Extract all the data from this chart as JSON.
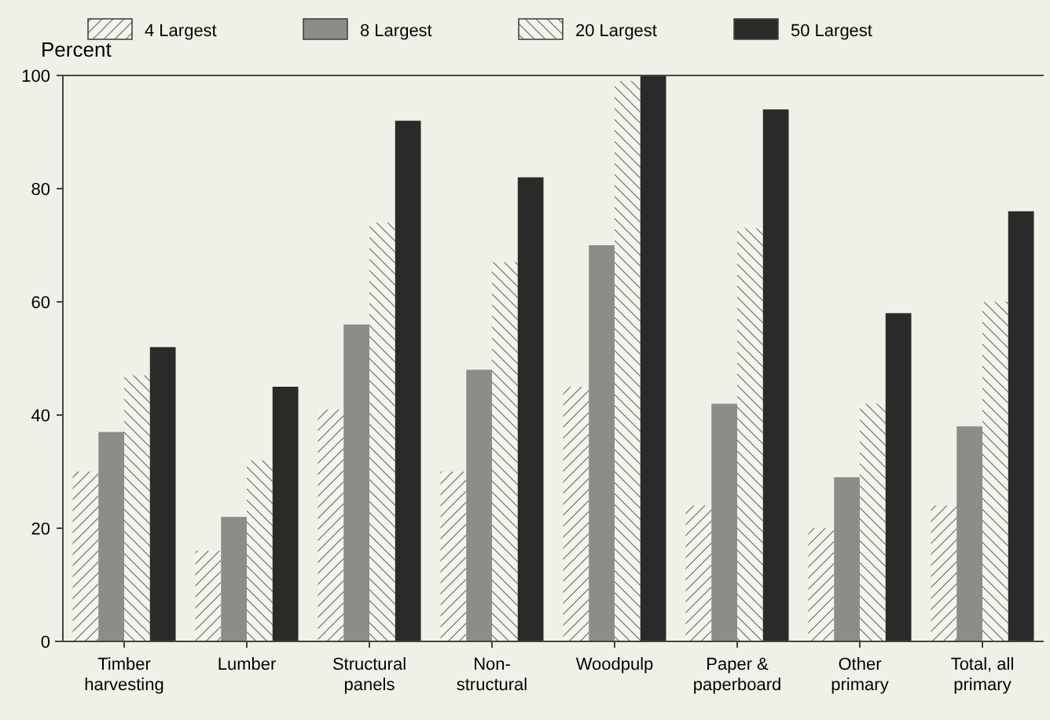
{
  "chart_data": {
    "type": "bar",
    "ylabel": "Percent",
    "categories": [
      "Timber harvesting",
      "Lumber",
      "Structural panels",
      "Non-structural",
      "Woodpulp",
      "Paper & paperboard",
      "Other primary",
      "Total, all primary"
    ],
    "series": [
      {
        "name": "4 Largest",
        "color": "#f4f3ec",
        "values": [
          30,
          16,
          41,
          30,
          45,
          24,
          20,
          24
        ]
      },
      {
        "name": "8 Largest",
        "color": "#8c8c88",
        "values": [
          37,
          22,
          56,
          48,
          70,
          42,
          29,
          38
        ]
      },
      {
        "name": "20 Largest",
        "color": "#f4f3ec",
        "values": [
          47,
          32,
          74,
          67,
          99,
          73,
          42,
          60
        ]
      },
      {
        "name": "50 Largest",
        "color": "#2b2a28",
        "values": [
          52,
          45,
          92,
          82,
          100,
          94,
          58,
          76
        ]
      }
    ],
    "ylim": [
      0,
      100
    ],
    "yticks": [
      0,
      20,
      40,
      60,
      80,
      100
    ],
    "legend": "top"
  }
}
